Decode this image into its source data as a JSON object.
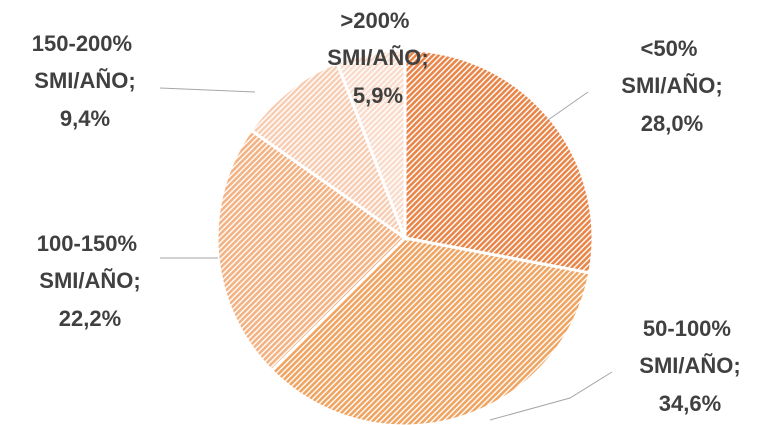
{
  "chart_data": {
    "type": "pie",
    "categories": [
      "<50% SMI/AÑO;",
      "50-100% SMI/AÑO;",
      "100-150% SMI/AÑO;",
      "150-200% SMI/AÑO;",
      ">200% SMI/AÑO;"
    ],
    "values": [
      28.0,
      34.6,
      22.2,
      9.4,
      5.9
    ],
    "value_labels": [
      "28,0%",
      "34,6%",
      "22,2%",
      "9,4%",
      "5,9%"
    ],
    "colors": [
      "#e8864a",
      "#f0a462",
      "#f4b283",
      "#f7cdb4",
      "#f9dccc"
    ]
  }
}
